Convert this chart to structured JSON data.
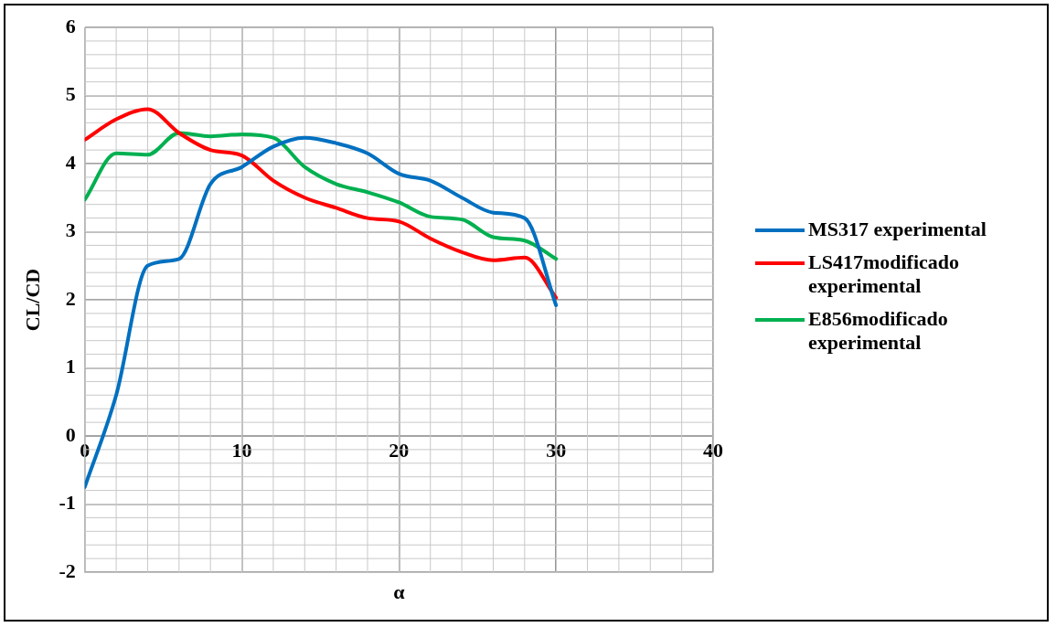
{
  "chart_data": {
    "type": "line",
    "xlabel": "α",
    "ylabel": "CL/CD",
    "x": [
      0,
      2,
      4,
      6,
      8,
      10,
      12,
      14,
      16,
      18,
      20,
      22,
      24,
      26,
      28,
      30
    ],
    "series": [
      {
        "name": "MS317 experimental",
        "color": "#0070c0",
        "values": [
          -0.75,
          0.6,
          2.5,
          2.6,
          3.7,
          3.95,
          4.25,
          4.38,
          4.3,
          4.15,
          3.85,
          3.75,
          3.5,
          3.28,
          3.2,
          1.92
        ]
      },
      {
        "name": "LS417modificado experimental",
        "color": "#ff0000",
        "values": [
          4.35,
          4.65,
          4.8,
          4.45,
          4.2,
          4.12,
          3.75,
          3.5,
          3.35,
          3.2,
          3.15,
          2.9,
          2.7,
          2.58,
          2.62,
          2.03
        ]
      },
      {
        "name": "E856modificado experimental",
        "color": "#00b050",
        "values": [
          3.47,
          4.15,
          4.13,
          4.45,
          4.4,
          4.43,
          4.38,
          3.95,
          3.7,
          3.58,
          3.43,
          3.22,
          3.18,
          2.92,
          2.87,
          2.6
        ]
      }
    ],
    "xlim": [
      0,
      40
    ],
    "xticks": [
      0,
      10,
      20,
      30,
      40
    ],
    "ylim": [
      -2,
      6
    ],
    "yticks": [
      -2,
      -1,
      0,
      1,
      2,
      3,
      4,
      5,
      6
    ],
    "grid": true,
    "legend": "right",
    "marker": "none",
    "line_style": "solid"
  }
}
